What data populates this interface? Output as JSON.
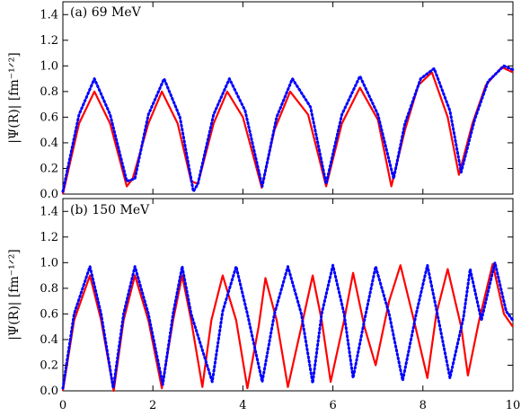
{
  "chart_data": [
    {
      "type": "line",
      "panel_label": "(a) 69 MeV",
      "ylabel": "|Ψ(R)| [fm⁻¹ᐟ²]",
      "xlim": [
        0,
        10
      ],
      "ylim": [
        0,
        1.5
      ],
      "yticks": [
        "0.0",
        "0.2",
        "0.4",
        "0.6",
        "0.8",
        "1.0",
        "1.2",
        "1.4"
      ],
      "xticks": [],
      "series": [
        {
          "style": "solid",
          "color": "#ff0000",
          "x": [
            0.0,
            0.36,
            0.7,
            1.05,
            1.42,
            1.55,
            1.9,
            2.2,
            2.55,
            2.85,
            3.0,
            3.35,
            3.65,
            4.0,
            4.42,
            4.7,
            5.05,
            5.45,
            5.85,
            6.2,
            6.6,
            7.0,
            7.3,
            7.6,
            7.9,
            8.2,
            8.55,
            8.8,
            9.1,
            9.4,
            9.75,
            10.0
          ],
          "y": [
            0.0,
            0.55,
            0.8,
            0.55,
            0.06,
            0.12,
            0.55,
            0.8,
            0.55,
            0.1,
            0.08,
            0.55,
            0.8,
            0.6,
            0.05,
            0.5,
            0.8,
            0.62,
            0.06,
            0.55,
            0.83,
            0.58,
            0.06,
            0.5,
            0.85,
            0.95,
            0.6,
            0.15,
            0.55,
            0.85,
            0.99,
            0.95
          ]
        },
        {
          "style": "dotted",
          "color": "#0000ff",
          "x": [
            0.0,
            0.36,
            0.7,
            1.05,
            1.42,
            1.6,
            1.9,
            2.25,
            2.6,
            2.9,
            3.0,
            3.35,
            3.7,
            4.05,
            4.43,
            4.75,
            5.1,
            5.5,
            5.85,
            6.2,
            6.6,
            7.0,
            7.35,
            7.6,
            7.95,
            8.25,
            8.6,
            8.85,
            9.15,
            9.45,
            9.8,
            10.0
          ],
          "y": [
            0.02,
            0.62,
            0.9,
            0.62,
            0.1,
            0.12,
            0.62,
            0.9,
            0.6,
            0.02,
            0.08,
            0.62,
            0.9,
            0.65,
            0.06,
            0.6,
            0.9,
            0.68,
            0.08,
            0.62,
            0.92,
            0.62,
            0.12,
            0.55,
            0.9,
            0.98,
            0.65,
            0.17,
            0.58,
            0.88,
            1.0,
            0.97
          ]
        }
      ]
    },
    {
      "type": "line",
      "panel_label": "(b) 150 MeV",
      "ylabel": "|Ψ(R)| [fm⁻¹ᐟ²]",
      "xlim": [
        0,
        10
      ],
      "ylim": [
        0,
        1.5
      ],
      "yticks": [
        "0.0",
        "0.2",
        "0.4",
        "0.6",
        "0.8",
        "1.0",
        "1.2",
        "1.4"
      ],
      "xticks": [
        "0",
        "2",
        "4",
        "6",
        "8",
        "10"
      ],
      "series": [
        {
          "style": "solid",
          "color": "#ff0000",
          "x": [
            0.0,
            0.25,
            0.6,
            0.85,
            1.13,
            1.35,
            1.6,
            1.9,
            2.2,
            2.45,
            2.65,
            2.85,
            3.1,
            3.3,
            3.55,
            3.85,
            4.1,
            4.35,
            4.5,
            4.75,
            5.0,
            5.3,
            5.55,
            5.75,
            5.95,
            6.25,
            6.45,
            6.7,
            6.95,
            7.25,
            7.5,
            7.8,
            8.1,
            8.3,
            8.55,
            8.85,
            9.0,
            9.25,
            9.55,
            9.8,
            10.0
          ],
          "y": [
            0.0,
            0.55,
            0.9,
            0.55,
            0.0,
            0.55,
            0.9,
            0.55,
            0.02,
            0.55,
            0.9,
            0.55,
            0.03,
            0.55,
            0.9,
            0.55,
            0.02,
            0.5,
            0.88,
            0.55,
            0.03,
            0.5,
            0.9,
            0.55,
            0.07,
            0.55,
            0.92,
            0.5,
            0.2,
            0.7,
            0.98,
            0.55,
            0.1,
            0.6,
            0.95,
            0.5,
            0.12,
            0.55,
            0.99,
            0.6,
            0.5
          ]
        },
        {
          "style": "dotted",
          "color": "#0000ff",
          "x": [
            0.0,
            0.25,
            0.6,
            0.85,
            1.12,
            1.35,
            1.6,
            1.9,
            2.22,
            2.45,
            2.65,
            2.85,
            3.32,
            3.55,
            3.85,
            4.1,
            4.43,
            4.7,
            5.0,
            5.3,
            5.55,
            5.75,
            6.0,
            6.25,
            6.45,
            6.7,
            6.95,
            7.25,
            7.55,
            7.85,
            8.1,
            8.35,
            8.6,
            8.9,
            9.05,
            9.3,
            9.6,
            9.85,
            10.0
          ],
          "y": [
            0.02,
            0.6,
            0.97,
            0.6,
            0.02,
            0.6,
            0.97,
            0.6,
            0.05,
            0.6,
            0.97,
            0.6,
            0.07,
            0.62,
            0.97,
            0.6,
            0.07,
            0.6,
            0.97,
            0.6,
            0.06,
            0.6,
            0.98,
            0.6,
            0.1,
            0.55,
            0.97,
            0.6,
            0.08,
            0.6,
            0.98,
            0.55,
            0.1,
            0.57,
            0.95,
            0.55,
            1.0,
            0.62,
            0.55
          ]
        }
      ]
    }
  ]
}
